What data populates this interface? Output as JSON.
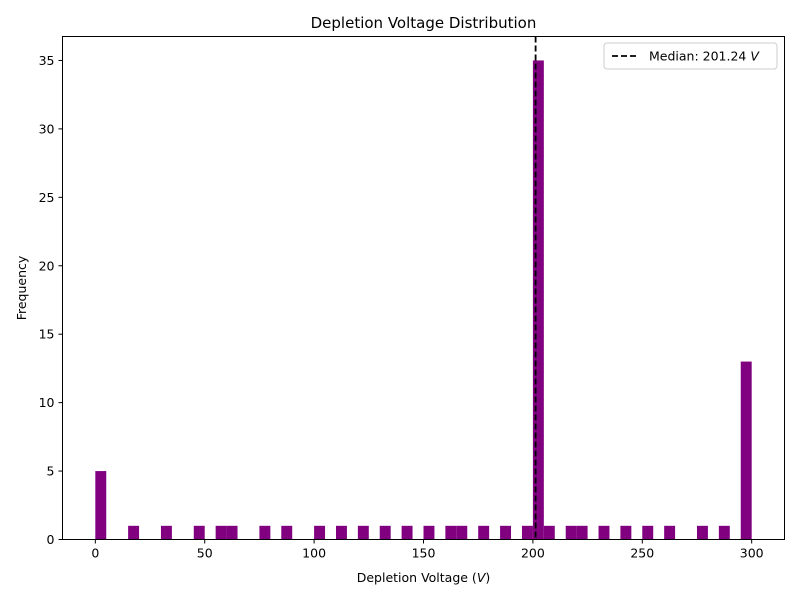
{
  "chart_data": {
    "type": "bar",
    "title": "Depletion Voltage Distribution",
    "xlabel_prefix": "Depletion Voltage (",
    "xlabel_unit": "V",
    "xlabel_suffix": ")",
    "ylabel": "Frequency",
    "xlim": [
      -15,
      315
    ],
    "ylim": [
      0,
      36.75
    ],
    "xticks": [
      0,
      50,
      100,
      150,
      200,
      250,
      300
    ],
    "yticks": [
      0,
      5,
      10,
      15,
      20,
      25,
      30,
      35
    ],
    "bin_width": 5,
    "bars": [
      {
        "x": 0,
        "value": 5
      },
      {
        "x": 15,
        "value": 1
      },
      {
        "x": 30,
        "value": 1
      },
      {
        "x": 45,
        "value": 1
      },
      {
        "x": 55,
        "value": 1
      },
      {
        "x": 60,
        "value": 1
      },
      {
        "x": 75,
        "value": 1
      },
      {
        "x": 85,
        "value": 1
      },
      {
        "x": 100,
        "value": 1
      },
      {
        "x": 110,
        "value": 1
      },
      {
        "x": 120,
        "value": 1
      },
      {
        "x": 130,
        "value": 1
      },
      {
        "x": 140,
        "value": 1
      },
      {
        "x": 150,
        "value": 1
      },
      {
        "x": 160,
        "value": 1
      },
      {
        "x": 165,
        "value": 1
      },
      {
        "x": 175,
        "value": 1
      },
      {
        "x": 185,
        "value": 1
      },
      {
        "x": 195,
        "value": 1
      },
      {
        "x": 200,
        "value": 35
      },
      {
        "x": 205,
        "value": 1
      },
      {
        "x": 215,
        "value": 1
      },
      {
        "x": 220,
        "value": 1
      },
      {
        "x": 230,
        "value": 1
      },
      {
        "x": 240,
        "value": 1
      },
      {
        "x": 250,
        "value": 1
      },
      {
        "x": 260,
        "value": 1
      },
      {
        "x": 275,
        "value": 1
      },
      {
        "x": 285,
        "value": 1
      },
      {
        "x": 295,
        "value": 13
      }
    ],
    "bar_color": "#800080",
    "median": 201.24,
    "median_line_color": "#000000",
    "legend": {
      "position": "upper right",
      "label_prefix": "Median: 201.24 ",
      "label_unit": "V"
    },
    "grid": false
  }
}
